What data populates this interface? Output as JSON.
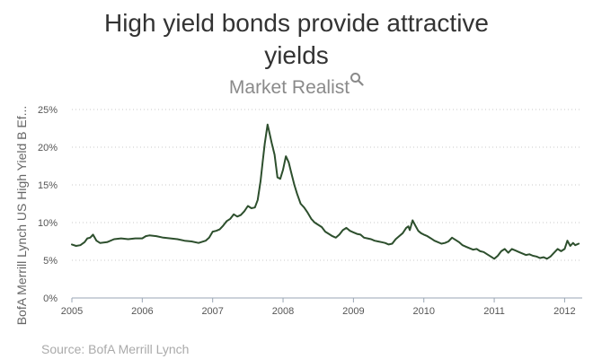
{
  "chart_data": {
    "type": "line",
    "title_lines": [
      "High yield bonds provide attractive",
      "yields"
    ],
    "brand": "Market Realist",
    "ylabel": "BofA Merrill Lynch US High Yield B Ef...",
    "source": "Source: BofA Merrill Lynch",
    "xlim": [
      2005.0,
      2012.25
    ],
    "ylim": [
      0,
      25
    ],
    "x_ticks": [
      {
        "value": 2005,
        "label": "2005"
      },
      {
        "value": 2006,
        "label": "2006"
      },
      {
        "value": 2007,
        "label": "2007"
      },
      {
        "value": 2008,
        "label": "2008"
      },
      {
        "value": 2009,
        "label": "2009"
      },
      {
        "value": 2010,
        "label": "2010"
      },
      {
        "value": 2011,
        "label": "2011"
      },
      {
        "value": 2012,
        "label": "2012"
      }
    ],
    "y_ticks": [
      {
        "value": 0,
        "label": "0%"
      },
      {
        "value": 5,
        "label": "5%"
      },
      {
        "value": 10,
        "label": "10%"
      },
      {
        "value": 15,
        "label": "15%"
      },
      {
        "value": 20,
        "label": "20%"
      },
      {
        "value": 25,
        "label": "25%"
      }
    ],
    "grid": true,
    "line_color": "#2d4f2d",
    "series": [
      {
        "x": [
          2005.0,
          2005.06,
          2005.12,
          2005.18,
          2005.22,
          2005.26,
          2005.3,
          2005.35,
          2005.4,
          2005.5,
          2005.6,
          2005.7,
          2005.8,
          2005.9,
          2006.0,
          2006.05,
          2006.1,
          2006.2,
          2006.3,
          2006.4,
          2006.5,
          2006.6,
          2006.7,
          2006.8,
          2006.9,
          2006.95,
          2007.0,
          2007.05,
          2007.1,
          2007.15,
          2007.2,
          2007.25,
          2007.3,
          2007.35,
          2007.4,
          2007.45,
          2007.5,
          2007.55,
          2007.6,
          2007.64,
          2007.68,
          2007.71,
          2007.74,
          2007.78,
          2007.81,
          2007.84,
          2007.88,
          2007.92,
          2007.96,
          2008.0,
          2008.04,
          2008.08,
          2008.12,
          2008.16,
          2008.2,
          2008.25,
          2008.3,
          2008.35,
          2008.4,
          2008.45,
          2008.5,
          2008.55,
          2008.6,
          2008.65,
          2008.7,
          2008.75,
          2008.8,
          2008.85,
          2008.9,
          2008.95,
          2009.0,
          2009.05,
          2009.1,
          2009.15,
          2009.2,
          2009.25,
          2009.3,
          2009.35,
          2009.4,
          2009.45,
          2009.5,
          2009.55,
          2009.6,
          2009.65,
          2009.7,
          2009.75,
          2009.78,
          2009.8,
          2009.84,
          2009.88,
          2009.92,
          2009.96,
          2010.0,
          2010.05,
          2010.1,
          2010.15,
          2010.2,
          2010.25,
          2010.3,
          2010.35,
          2010.4,
          2010.45,
          2010.5,
          2010.55,
          2010.6,
          2010.65,
          2010.7,
          2010.75,
          2010.8,
          2010.85,
          2010.9,
          2010.95,
          2011.0,
          2011.05,
          2011.1,
          2011.15,
          2011.2,
          2011.25,
          2011.3,
          2011.35,
          2011.4,
          2011.45,
          2011.5,
          2011.55,
          2011.6,
          2011.65,
          2011.7,
          2011.75,
          2011.8,
          2011.85,
          2011.9,
          2011.95,
          2012.0,
          2012.04,
          2012.08,
          2012.12,
          2012.15,
          2012.2
        ],
        "y": [
          7.1,
          6.9,
          7.0,
          7.4,
          7.9,
          8.0,
          8.4,
          7.6,
          7.3,
          7.4,
          7.8,
          7.9,
          7.8,
          7.9,
          7.9,
          8.2,
          8.3,
          8.2,
          8.0,
          7.9,
          7.8,
          7.6,
          7.5,
          7.3,
          7.6,
          8.0,
          8.8,
          8.9,
          9.1,
          9.6,
          10.2,
          10.5,
          11.1,
          10.8,
          11.0,
          11.5,
          12.2,
          11.9,
          12.0,
          13.0,
          15.5,
          18.0,
          20.5,
          23.0,
          21.8,
          20.5,
          19.0,
          16.0,
          15.8,
          17.0,
          18.8,
          18.0,
          16.5,
          15.0,
          13.8,
          12.5,
          12.0,
          11.3,
          10.5,
          10.0,
          9.7,
          9.4,
          8.8,
          8.5,
          8.2,
          8.0,
          8.4,
          9.0,
          9.3,
          8.9,
          8.7,
          8.5,
          8.4,
          8.0,
          7.9,
          7.8,
          7.6,
          7.5,
          7.4,
          7.3,
          7.1,
          7.2,
          7.8,
          8.2,
          8.6,
          9.3,
          9.5,
          9.0,
          10.3,
          9.6,
          8.9,
          8.6,
          8.4,
          8.2,
          7.9,
          7.6,
          7.4,
          7.2,
          7.3,
          7.5,
          8.0,
          7.7,
          7.4,
          7.0,
          6.8,
          6.6,
          6.4,
          6.5,
          6.2,
          6.1,
          5.8,
          5.5,
          5.2,
          5.6,
          6.2,
          6.5,
          6.0,
          6.5,
          6.3,
          6.1,
          5.9,
          5.7,
          5.8,
          5.6,
          5.5,
          5.3,
          5.4,
          5.2,
          5.5,
          6.0,
          6.5,
          6.2,
          6.5,
          7.6,
          6.9,
          7.3,
          7.0,
          7.2
        ]
      }
    ]
  }
}
